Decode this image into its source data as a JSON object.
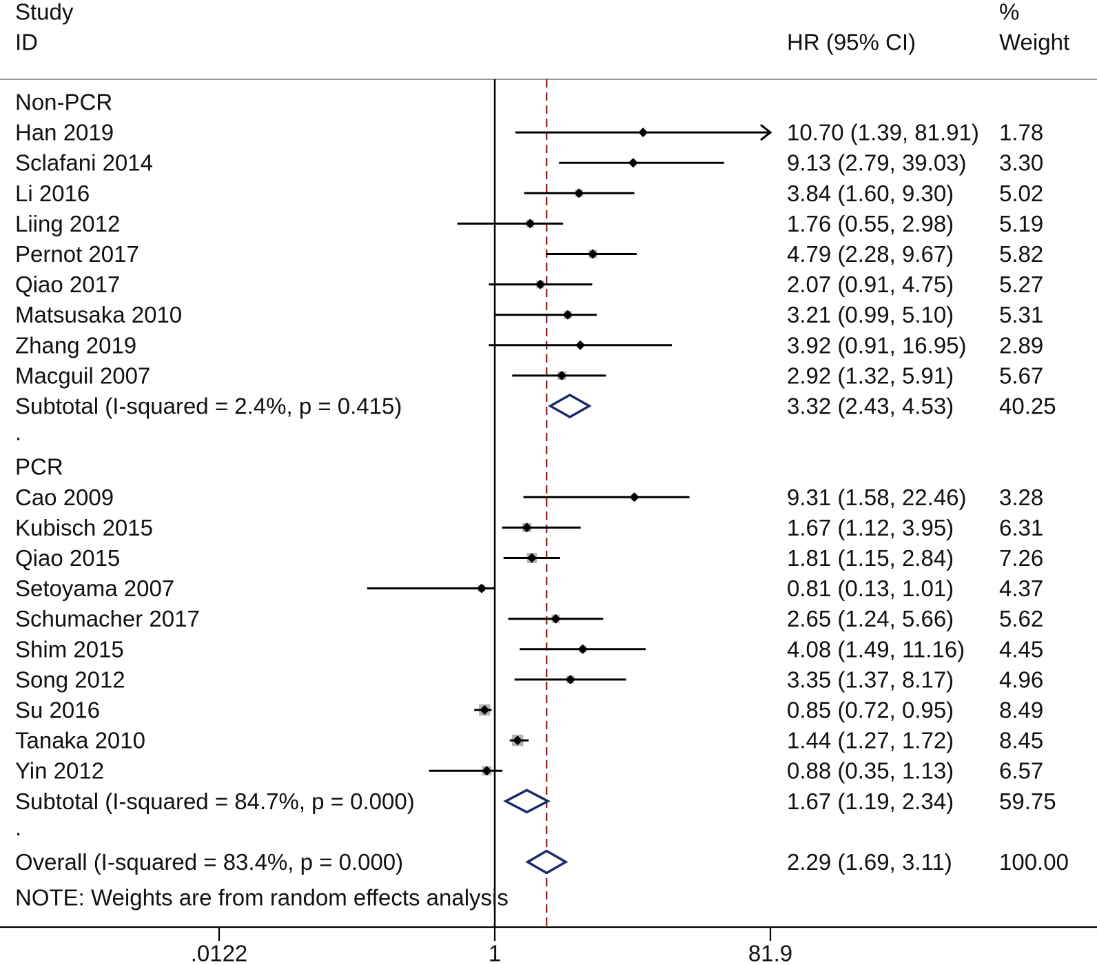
{
  "chart_data": {
    "type": "forest",
    "header": {
      "study_line1": "Study",
      "study_line2": "ID",
      "effect_label": "HR (95% CI)",
      "weight_line1": "%",
      "weight_line2": "Weight"
    },
    "x_scale": "log",
    "xlim": [
      0.0122,
      81.9
    ],
    "x_ticks": [
      {
        "value": 0.0122,
        "label": ".0122"
      },
      {
        "value": 1,
        "label": "1"
      },
      {
        "value": 81.9,
        "label": "81.9"
      }
    ],
    "null_line": 1,
    "overall_line": 2.29,
    "rows": [
      {
        "kind": "group",
        "label": "Non-PCR"
      },
      {
        "kind": "study",
        "label": "Han 2019",
        "est": 10.7,
        "lo": 1.39,
        "hi": 81.91,
        "text": "10.70 (1.39, 81.91)",
        "weight": "1.78",
        "arrow_right": true
      },
      {
        "kind": "study",
        "label": "Sclafani 2014",
        "est": 9.13,
        "lo": 2.79,
        "hi": 39.03,
        "text": "9.13 (2.79, 39.03)",
        "weight": "3.30"
      },
      {
        "kind": "study",
        "label": "Li 2016",
        "est": 3.84,
        "lo": 1.6,
        "hi": 9.3,
        "text": "3.84 (1.60, 9.30)",
        "weight": "5.02"
      },
      {
        "kind": "study",
        "label": "Liing 2012",
        "est": 1.76,
        "lo": 0.55,
        "hi": 2.98,
        "text": "1.76 (0.55, 2.98)",
        "weight": "5.19"
      },
      {
        "kind": "study",
        "label": "Pernot 2017",
        "est": 4.79,
        "lo": 2.28,
        "hi": 9.67,
        "text": "4.79 (2.28, 9.67)",
        "weight": "5.82"
      },
      {
        "kind": "study",
        "label": "Qiao 2017",
        "est": 2.07,
        "lo": 0.91,
        "hi": 4.75,
        "text": "2.07 (0.91, 4.75)",
        "weight": "5.27"
      },
      {
        "kind": "study",
        "label": "Matsusaka 2010",
        "est": 3.21,
        "lo": 0.99,
        "hi": 5.1,
        "text": "3.21 (0.99, 5.10)",
        "weight": "5.31"
      },
      {
        "kind": "study",
        "label": "Zhang 2019",
        "est": 3.92,
        "lo": 0.91,
        "hi": 16.95,
        "text": "3.92 (0.91, 16.95)",
        "weight": "2.89"
      },
      {
        "kind": "study",
        "label": "Macguil 2007",
        "est": 2.92,
        "lo": 1.32,
        "hi": 5.91,
        "text": "2.92 (1.32, 5.91)",
        "weight": "5.67"
      },
      {
        "kind": "subtotal",
        "label": "Subtotal  (I-squared = 2.4%, p = 0.415)",
        "est": 3.32,
        "lo": 2.43,
        "hi": 4.53,
        "text": "3.32 (2.43, 4.53)",
        "weight": "40.25"
      },
      {
        "kind": "spacer",
        "label": "."
      },
      {
        "kind": "group",
        "label": "PCR"
      },
      {
        "kind": "study",
        "label": "Cao 2009",
        "est": 9.31,
        "lo": 1.58,
        "hi": 22.46,
        "text": "9.31 (1.58, 22.46)",
        "weight": "3.28"
      },
      {
        "kind": "study",
        "label": "Kubisch 2015",
        "est": 1.67,
        "lo": 1.12,
        "hi": 3.95,
        "text": "1.67 (1.12, 3.95)",
        "weight": "6.31"
      },
      {
        "kind": "study",
        "label": "Qiao 2015",
        "est": 1.81,
        "lo": 1.15,
        "hi": 2.84,
        "text": "1.81 (1.15, 2.84)",
        "weight": "7.26"
      },
      {
        "kind": "study",
        "label": "Setoyama 2007",
        "est": 0.81,
        "lo": 0.13,
        "hi": 1.01,
        "text": "0.81 (0.13, 1.01)",
        "weight": "4.37"
      },
      {
        "kind": "study",
        "label": "Schumacher 2017",
        "est": 2.65,
        "lo": 1.24,
        "hi": 5.66,
        "text": "2.65 (1.24, 5.66)",
        "weight": "5.62"
      },
      {
        "kind": "study",
        "label": "Shim 2015",
        "est": 4.08,
        "lo": 1.49,
        "hi": 11.16,
        "text": "4.08 (1.49, 11.16)",
        "weight": "4.45"
      },
      {
        "kind": "study",
        "label": "Song 2012",
        "est": 3.35,
        "lo": 1.37,
        "hi": 8.17,
        "text": "3.35 (1.37, 8.17)",
        "weight": "4.96"
      },
      {
        "kind": "study",
        "label": "Su 2016",
        "est": 0.85,
        "lo": 0.72,
        "hi": 0.95,
        "text": "0.85 (0.72, 0.95)",
        "weight": "8.49"
      },
      {
        "kind": "study",
        "label": "Tanaka 2010",
        "est": 1.44,
        "lo": 1.27,
        "hi": 1.72,
        "text": "1.44 (1.27, 1.72)",
        "weight": "8.45"
      },
      {
        "kind": "study",
        "label": "Yin 2012",
        "est": 0.88,
        "lo": 0.35,
        "hi": 1.13,
        "text": "0.88 (0.35, 1.13)",
        "weight": "6.57"
      },
      {
        "kind": "subtotal",
        "label": "Subtotal  (I-squared = 84.7%, p = 0.000)",
        "est": 1.67,
        "lo": 1.19,
        "hi": 2.34,
        "text": "1.67 (1.19, 2.34)",
        "weight": "59.75"
      },
      {
        "kind": "spacer",
        "label": "."
      },
      {
        "kind": "overall",
        "label": "Overall  (I-squared = 83.4%, p = 0.000)",
        "est": 2.29,
        "lo": 1.69,
        "hi": 3.11,
        "text": "2.29 (1.69, 3.11)",
        "weight": "100.00"
      }
    ],
    "note": "NOTE: Weights are from random effects analysis",
    "colors": {
      "diamond": "#1a2a6c",
      "overall_line": "#8b1a1a",
      "weight_box": "#b3b3b3",
      "line": "#000000"
    }
  }
}
